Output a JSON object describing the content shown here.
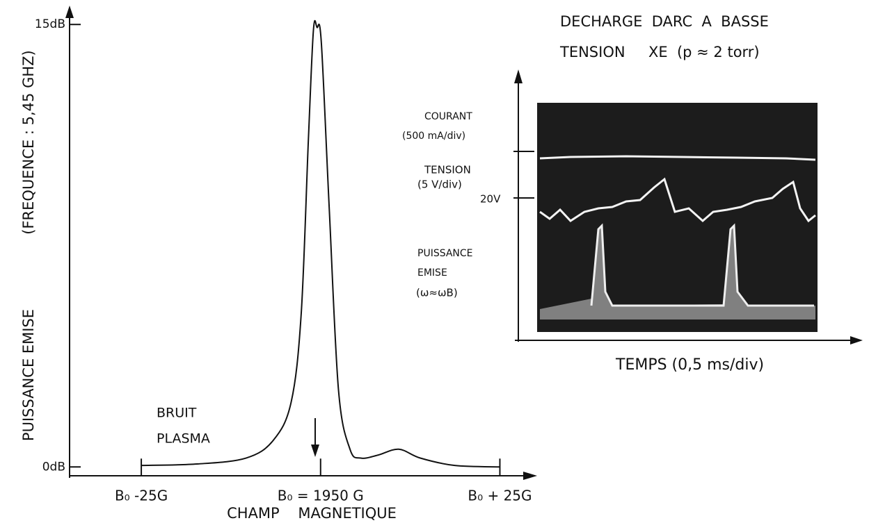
{
  "chart_data": {
    "type": "line",
    "y_label": "PUISSANCE EMISE",
    "y_label_note": "(FREQUENCE : 5,45 GHZ)",
    "x_label": "CHAMP    MAGNETIQUE",
    "annotation": [
      "BRUIT",
      "PLASMA"
    ],
    "color": "#111111",
    "x": [
      1925,
      1932.8,
      1939.6,
      1943.4,
      1945.9,
      1947.3,
      1948.3,
      1949.0,
      1949.5,
      1950.1,
      1951.2,
      1952.5,
      1954.1,
      1955.6,
      1958.0,
      1960.9,
      1963.9,
      1968.7,
      1975
    ],
    "values": [
      0.05,
      0.1,
      0.3,
      0.9,
      2.2,
      5.2,
      11.1,
      14.8,
      14.9,
      14.4,
      8.8,
      2.6,
      0.6,
      0.3,
      0.4,
      0.6,
      0.3,
      0.05,
      0
    ],
    "xlim": [
      1915,
      1980
    ],
    "ylim": [
      -0.3,
      15.5
    ],
    "xticks": [
      {
        "value": 1925,
        "label": "B₀ -25G"
      },
      {
        "value": 1950,
        "label": "B₀ = 1950 G"
      },
      {
        "value": 1975,
        "label": "B₀ + 25G"
      }
    ],
    "yticks": [
      {
        "value": 0,
        "label": "0dB"
      },
      {
        "value": 15,
        "label": "15dB"
      }
    ],
    "inset": {
      "title": [
        "DECHARGE  DARC  A  BASSE",
        "TENSION     XE  (p ≈ 2 torr)"
      ],
      "labels": [
        "COURANT",
        "(500 mA/div)",
        "TENSION",
        "(5 V/div)",
        "20V",
        "PUISSANCE",
        "EMISE",
        "(ω≈ωB)"
      ],
      "x_label": "TEMPS (0,5 ms/div)"
    }
  }
}
